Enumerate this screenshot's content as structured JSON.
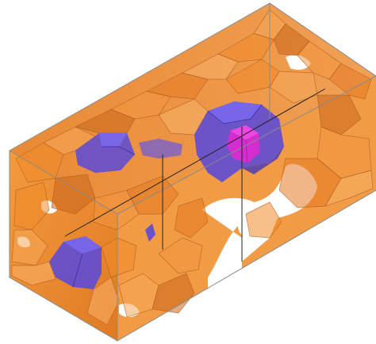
{
  "figure": {
    "kind": "3D polyhedral cell structure in a rectangular box",
    "colors": {
      "background": "#ffffff",
      "cell_orange": "#f08a2a",
      "cell_orange_light": "#f6a85a",
      "cell_orange_dark": "#c9661c",
      "cell_edge": "#a85a20",
      "cluster_blue": "#5a4ad8",
      "cluster_blue_light": "#7a6cf0",
      "core_magenta": "#e02ad0",
      "box_edge": "#8a8a8a",
      "axis_line": "#222222"
    }
  }
}
